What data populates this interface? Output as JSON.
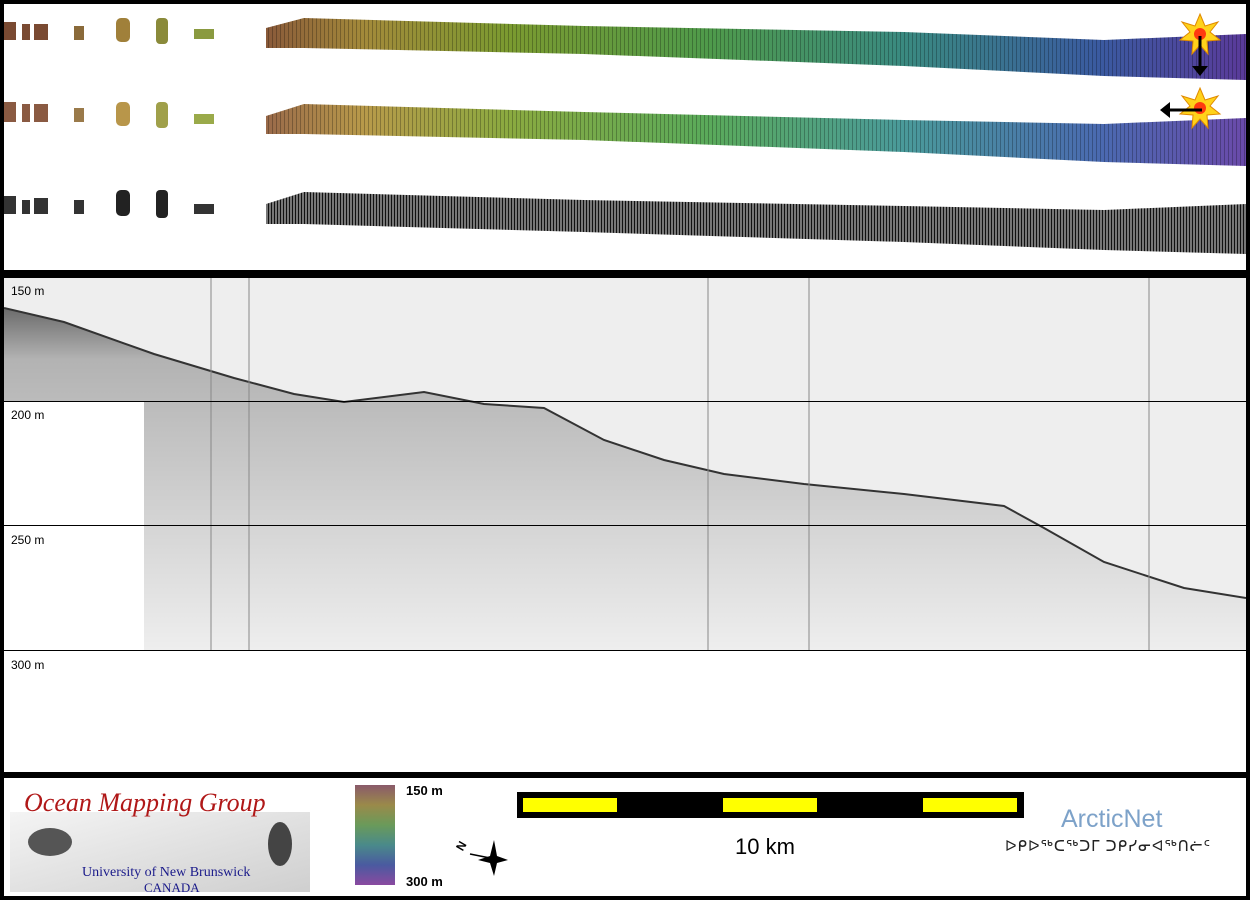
{
  "profile": {
    "depth_labels": [
      "150 m",
      "200 m",
      "250 m",
      "300 m"
    ]
  },
  "legend": {
    "org_title": "Ocean Mapping Group",
    "org_university": "University of New Brunswick",
    "org_country": "CANADA",
    "colorbar_top": "150 m",
    "colorbar_bottom": "300 m",
    "scale_label": "10 km",
    "partner_name": "ArcticNet",
    "partner_syllabics": "ᐅᑭᐅᖅᑕᖅᑐᒥ ᑐᑭᓯᓂᐊᖅᑎᓖᑦ",
    "compass_letter": "N"
  },
  "colors": {
    "panel_bg": "#ffffff",
    "frame": "#000000",
    "scale_bar_fill": "#ffff00",
    "omg_red": "#b01818",
    "omg_blue": "#1a1a8a",
    "arcticnet_blue": "#7da2c9"
  }
}
